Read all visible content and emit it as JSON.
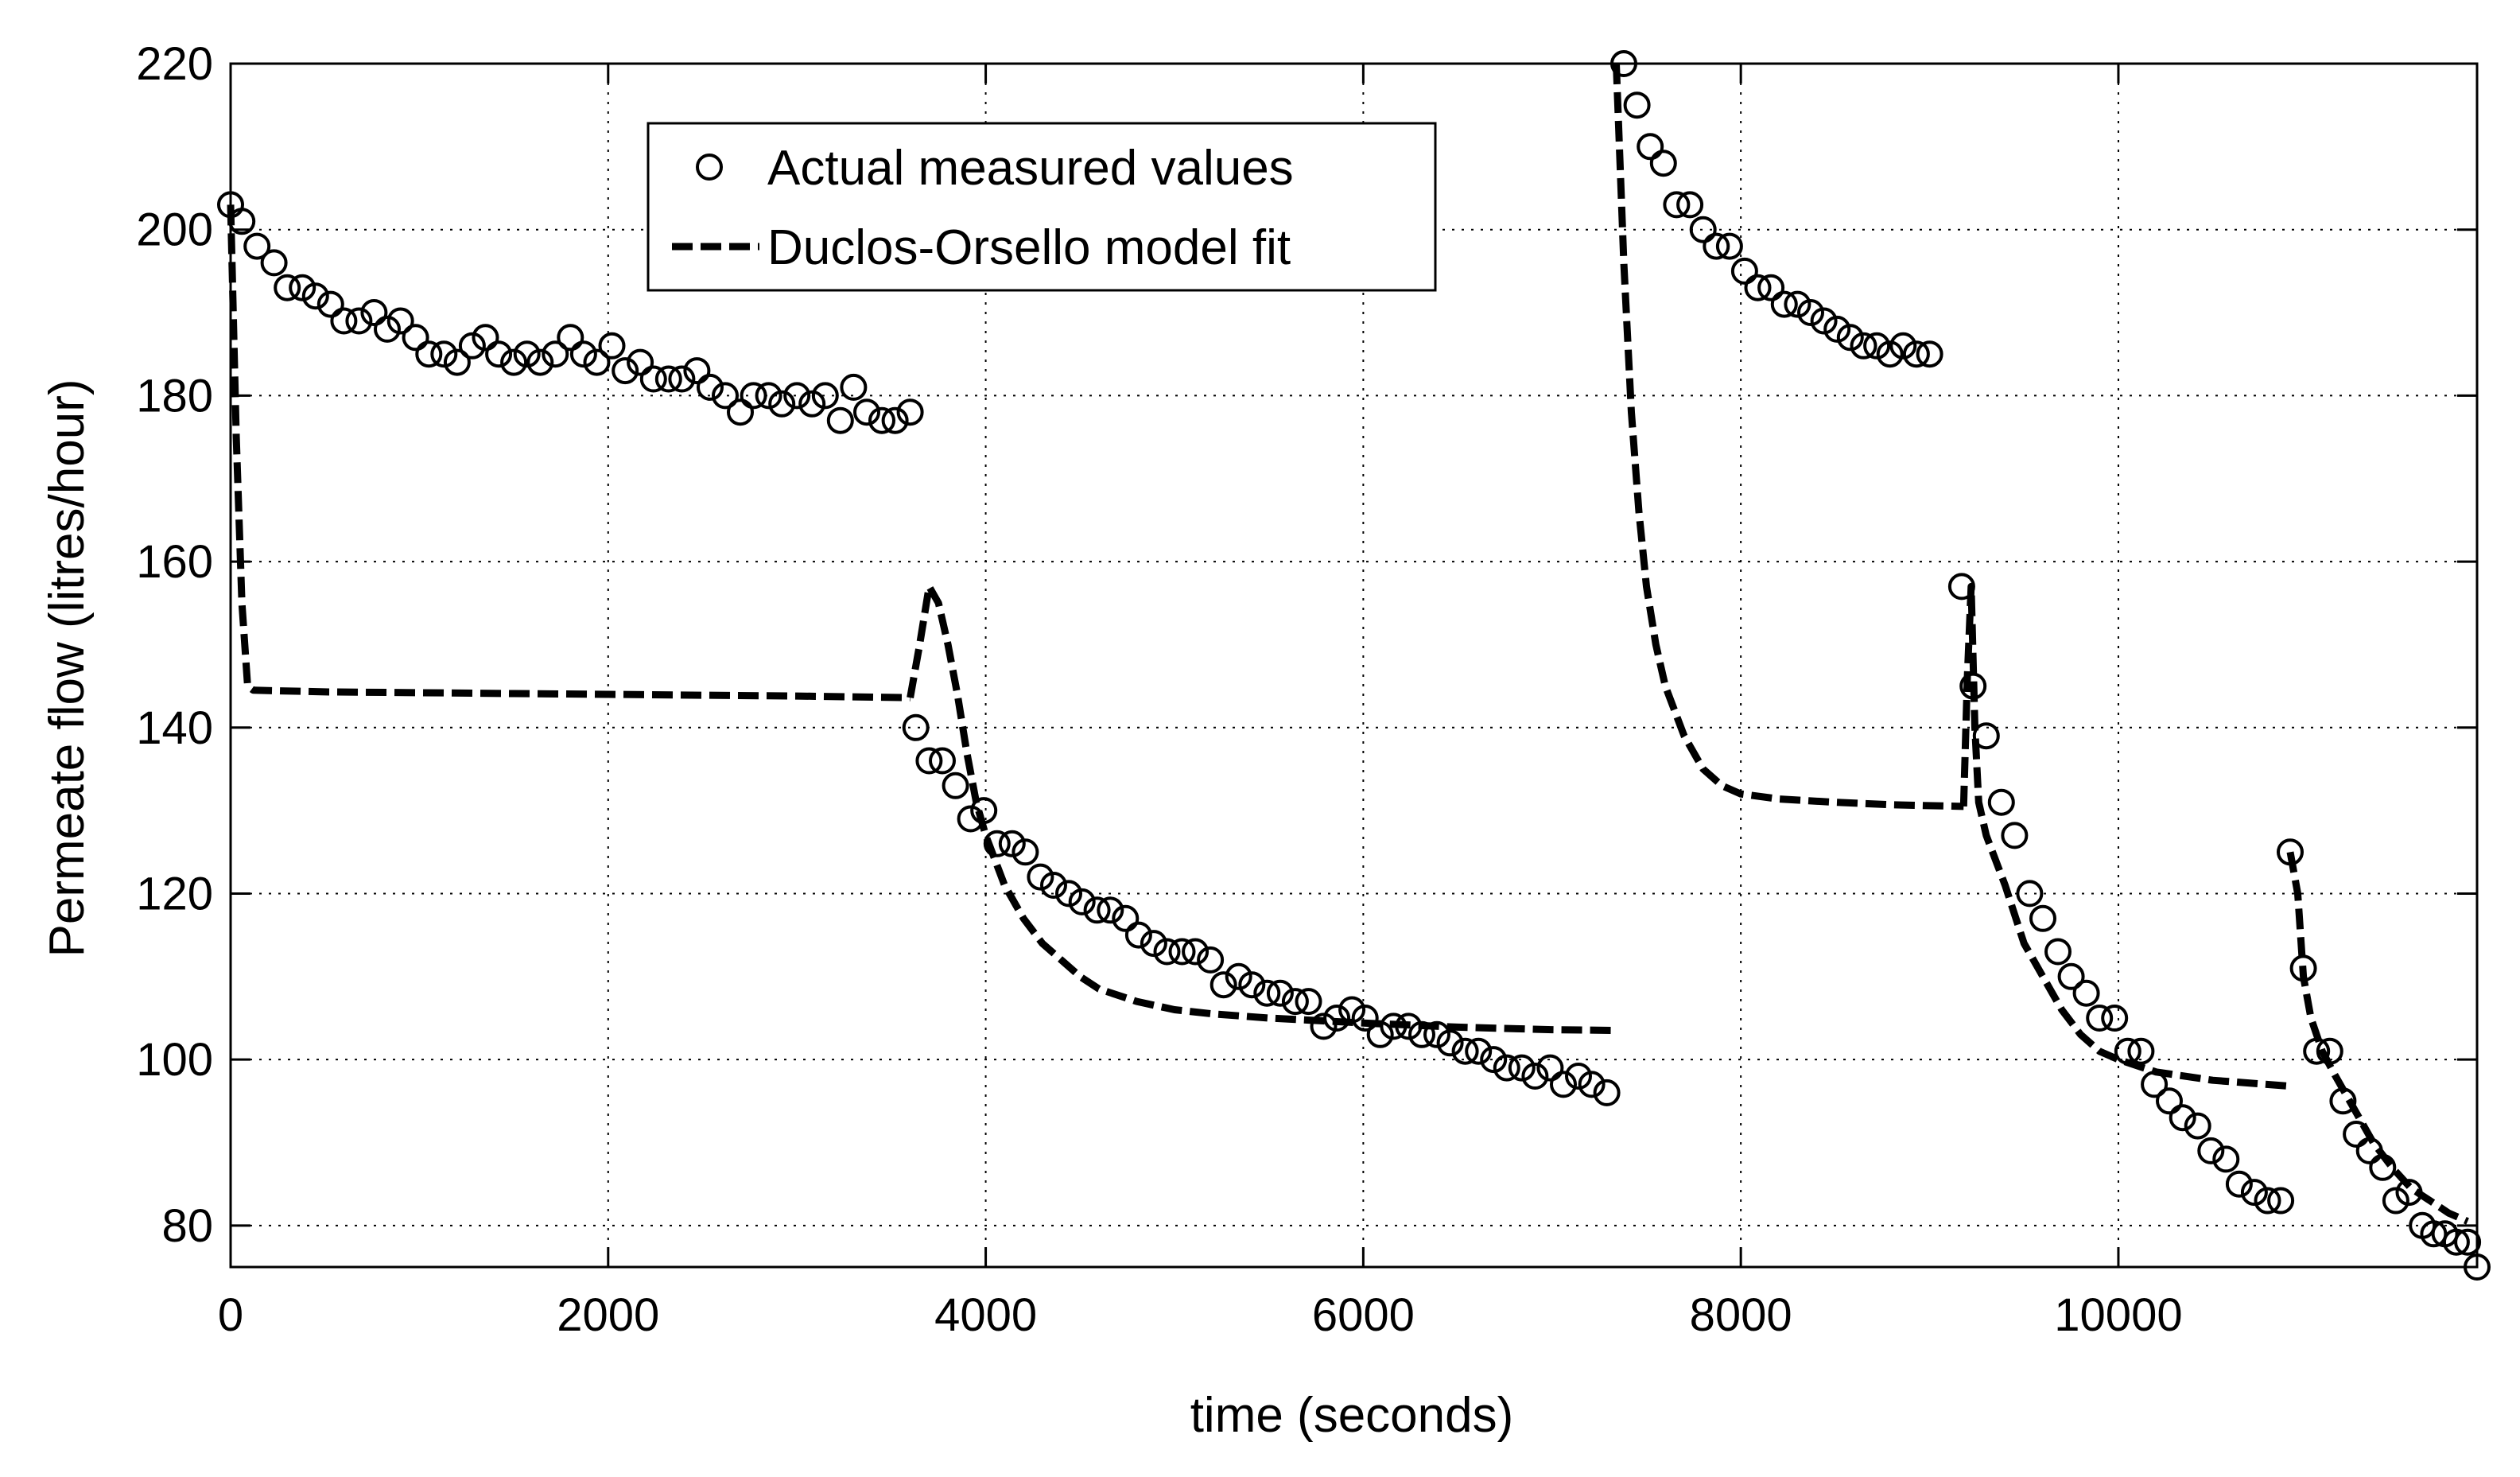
{
  "chart_data": {
    "type": "scatter",
    "title": "",
    "xlabel": "time (seconds)",
    "ylabel": "Permeate flow (litres/hour)",
    "xlim": [
      0,
      11900
    ],
    "ylim": [
      75,
      220
    ],
    "grid": true,
    "legend_position": "top-left",
    "x_ticks": [
      0,
      2000,
      4000,
      6000,
      8000,
      10000
    ],
    "y_ticks": [
      80,
      100,
      120,
      140,
      160,
      180,
      200,
      220
    ],
    "x_tick_labels": [
      "0",
      "2000",
      "4000",
      "6000",
      "8000",
      "10000"
    ],
    "y_tick_labels": [
      "80",
      "100",
      "120",
      "140",
      "160",
      "180",
      "200",
      "220"
    ],
    "series": [
      {
        "name": "Actual measured values",
        "marker": "circle",
        "segments": [
          [
            [
              0,
              203
            ],
            [
              60,
              201
            ],
            [
              140,
              198
            ],
            [
              230,
              196
            ],
            [
              300,
              193
            ],
            [
              380,
              193
            ],
            [
              450,
              192
            ],
            [
              530,
              191
            ],
            [
              600,
              189
            ],
            [
              680,
              189
            ],
            [
              760,
              190
            ],
            [
              830,
              188
            ],
            [
              900,
              189
            ],
            [
              980,
              187
            ],
            [
              1050,
              185
            ],
            [
              1130,
              185
            ],
            [
              1200,
              184
            ],
            [
              1280,
              186
            ],
            [
              1350,
              187
            ],
            [
              1420,
              185
            ],
            [
              1500,
              184
            ],
            [
              1570,
              185
            ],
            [
              1640,
              184
            ],
            [
              1720,
              185
            ],
            [
              1800,
              187
            ],
            [
              1870,
              185
            ],
            [
              1940,
              184
            ],
            [
              2020,
              186
            ],
            [
              2090,
              183
            ],
            [
              2170,
              184
            ],
            [
              2240,
              182
            ],
            [
              2320,
              182
            ],
            [
              2390,
              182
            ],
            [
              2470,
              183
            ],
            [
              2540,
              181
            ],
            [
              2620,
              180
            ],
            [
              2700,
              178
            ],
            [
              2770,
              180
            ],
            [
              2850,
              180
            ],
            [
              2920,
              179
            ],
            [
              3000,
              180
            ],
            [
              3080,
              179
            ],
            [
              3150,
              180
            ],
            [
              3230,
              177
            ],
            [
              3300,
              181
            ],
            [
              3370,
              178
            ],
            [
              3450,
              177
            ],
            [
              3520,
              177
            ],
            [
              3600,
              178
            ]
          ],
          [
            [
              3630,
              140
            ],
            [
              3700,
              136
            ],
            [
              3770,
              136
            ],
            [
              3840,
              133
            ],
            [
              3920,
              129
            ],
            [
              3990,
              130
            ],
            [
              4060,
              126
            ],
            [
              4140,
              126
            ],
            [
              4210,
              125
            ],
            [
              4290,
              122
            ],
            [
              4360,
              121
            ],
            [
              4440,
              120
            ],
            [
              4510,
              119
            ],
            [
              4590,
              118
            ],
            [
              4660,
              118
            ],
            [
              4740,
              117
            ],
            [
              4810,
              115
            ],
            [
              4890,
              114
            ],
            [
              4960,
              113
            ],
            [
              5040,
              113
            ],
            [
              5110,
              113
            ],
            [
              5190,
              112
            ],
            [
              5260,
              109
            ],
            [
              5340,
              110
            ],
            [
              5410,
              109
            ],
            [
              5490,
              108
            ],
            [
              5560,
              108
            ],
            [
              5640,
              107
            ],
            [
              5710,
              107
            ],
            [
              5790,
              104
            ],
            [
              5860,
              105
            ],
            [
              5940,
              106
            ],
            [
              6010,
              105
            ],
            [
              6090,
              103
            ],
            [
              6160,
              104
            ],
            [
              6240,
              104
            ],
            [
              6310,
              103
            ],
            [
              6390,
              103
            ],
            [
              6460,
              102
            ],
            [
              6540,
              101
            ],
            [
              6610,
              101
            ],
            [
              6690,
              100
            ],
            [
              6760,
              99
            ],
            [
              6840,
              99
            ],
            [
              6910,
              98
            ],
            [
              6990,
              99
            ],
            [
              7060,
              97
            ],
            [
              7140,
              98
            ],
            [
              7210,
              97
            ],
            [
              7290,
              96
            ]
          ],
          [
            [
              7380,
              220
            ],
            [
              7450,
              215
            ],
            [
              7520,
              210
            ],
            [
              7590,
              208
            ],
            [
              7660,
              203
            ],
            [
              7730,
              203
            ],
            [
              7800,
              200
            ],
            [
              7870,
              198
            ],
            [
              7940,
              198
            ],
            [
              8020,
              195
            ],
            [
              8090,
              193
            ],
            [
              8160,
              193
            ],
            [
              8230,
              191
            ],
            [
              8300,
              191
            ],
            [
              8370,
              190
            ],
            [
              8440,
              189
            ],
            [
              8510,
              188
            ],
            [
              8580,
              187
            ],
            [
              8650,
              186
            ],
            [
              8720,
              186
            ],
            [
              8790,
              185
            ],
            [
              8860,
              186
            ],
            [
              8930,
              185
            ],
            [
              9000,
              185
            ]
          ],
          [
            [
              9170,
              157
            ],
            [
              9230,
              145
            ],
            [
              9300,
              139
            ],
            [
              9380,
              131
            ],
            [
              9450,
              127
            ],
            [
              9530,
              120
            ],
            [
              9600,
              117
            ],
            [
              9680,
              113
            ],
            [
              9750,
              110
            ],
            [
              9830,
              108
            ],
            [
              9900,
              105
            ],
            [
              9980,
              105
            ],
            [
              10050,
              101
            ],
            [
              10120,
              101
            ],
            [
              10190,
              97
            ],
            [
              10270,
              95
            ],
            [
              10340,
              93
            ],
            [
              10420,
              92
            ],
            [
              10490,
              89
            ],
            [
              10570,
              88
            ],
            [
              10640,
              85
            ],
            [
              10720,
              84
            ],
            [
              10790,
              83
            ],
            [
              10860,
              83
            ]
          ],
          [
            [
              10910,
              125
            ],
            [
              10980,
              111
            ],
            [
              11050,
              101
            ],
            [
              11120,
              101
            ],
            [
              11190,
              95
            ],
            [
              11260,
              91
            ],
            [
              11330,
              89
            ],
            [
              11400,
              87
            ],
            [
              11470,
              83
            ],
            [
              11540,
              84
            ],
            [
              11610,
              80
            ],
            [
              11670,
              79
            ],
            [
              11730,
              79
            ],
            [
              11790,
              78
            ],
            [
              11850,
              78
            ],
            [
              11900,
              75
            ]
          ]
        ]
      },
      {
        "name": "Duclos-Orsello model fit",
        "line_style": "dashed",
        "segments": [
          [
            [
              0,
              203
            ],
            [
              30,
              175
            ],
            [
              60,
              155
            ],
            [
              90,
              145
            ],
            [
              120,
              144.5
            ],
            [
              500,
              144.3
            ],
            [
              1000,
              144.2
            ],
            [
              1500,
              144.1
            ],
            [
              2000,
              144
            ],
            [
              2500,
              143.9
            ],
            [
              3000,
              143.8
            ],
            [
              3600,
              143.6
            ]
          ],
          [
            [
              3600,
              143.6
            ],
            [
              3650,
              150
            ],
            [
              3700,
              157
            ],
            [
              3750,
              155
            ],
            [
              3800,
              150
            ],
            [
              3850,
              144
            ],
            [
              3900,
              137
            ],
            [
              3950,
              131
            ],
            [
              4000,
              127
            ],
            [
              4100,
              121
            ],
            [
              4200,
              117
            ],
            [
              4300,
              114
            ],
            [
              4400,
              112
            ],
            [
              4500,
              110
            ],
            [
              4600,
              108.5
            ],
            [
              4800,
              107
            ],
            [
              5000,
              106
            ],
            [
              5200,
              105.5
            ],
            [
              5500,
              105
            ],
            [
              6000,
              104.4
            ],
            [
              6500,
              103.9
            ],
            [
              7000,
              103.6
            ],
            [
              7350,
              103.5
            ]
          ],
          [
            [
              7340,
              220
            ],
            [
              7380,
              196
            ],
            [
              7420,
              178
            ],
            [
              7460,
              166
            ],
            [
              7500,
              157
            ],
            [
              7550,
              150
            ],
            [
              7600,
              145
            ],
            [
              7700,
              139
            ],
            [
              7800,
              135
            ],
            [
              7900,
              133
            ],
            [
              8000,
              132
            ],
            [
              8200,
              131.4
            ],
            [
              8500,
              131
            ],
            [
              8800,
              130.7
            ],
            [
              9180,
              130.5
            ]
          ],
          [
            [
              9180,
              130.5
            ],
            [
              9200,
              146
            ],
            [
              9220,
              157
            ],
            [
              9240,
              140
            ],
            [
              9260,
              131
            ],
            [
              9300,
              127
            ],
            [
              9400,
              121
            ],
            [
              9500,
              114
            ],
            [
              9600,
              110
            ],
            [
              9700,
              106
            ],
            [
              9800,
              103
            ],
            [
              9900,
              101
            ],
            [
              10000,
              100
            ],
            [
              10200,
              98.5
            ],
            [
              10500,
              97.5
            ],
            [
              10900,
              96.8
            ]
          ],
          [
            [
              10910,
              125
            ],
            [
              10950,
              120
            ],
            [
              10980,
              110
            ],
            [
              11020,
              105
            ],
            [
              11080,
              101
            ],
            [
              11150,
              98
            ],
            [
              11250,
              94
            ],
            [
              11350,
              90
            ],
            [
              11450,
              87
            ],
            [
              11550,
              84.5
            ],
            [
              11650,
              83
            ],
            [
              11750,
              81.5
            ],
            [
              11850,
              80.5
            ]
          ]
        ]
      }
    ]
  }
}
